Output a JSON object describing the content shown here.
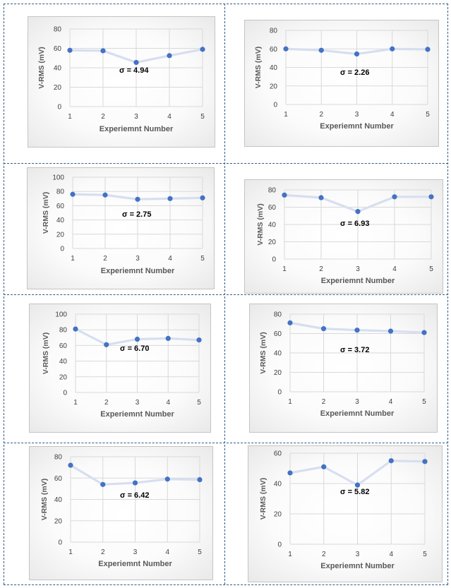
{
  "chart_data": [
    {
      "type": "line",
      "xlabel": "Experiemnt Number",
      "ylabel": "V-RMS (mV)",
      "ylim": [
        0,
        80
      ],
      "yticks": [
        0,
        20,
        40,
        60,
        80
      ],
      "x": [
        1,
        2,
        3,
        4,
        5
      ],
      "series": [
        {
          "values": [
            58,
            57.5,
            45.5,
            52.5,
            59
          ]
        }
      ],
      "annotation": "σ = 4.94",
      "grid": true,
      "color": "#4472c4",
      "line_color": "#d6dff0"
    },
    {
      "type": "line",
      "xlabel": "Experiemnt Number",
      "ylabel": "V-RMS (mV)",
      "ylim": [
        0,
        80
      ],
      "yticks": [
        0,
        20,
        40,
        60,
        80
      ],
      "x": [
        1,
        2,
        3,
        4,
        5
      ],
      "series": [
        {
          "values": [
            60,
            58.5,
            54.5,
            60,
            59.5
          ]
        }
      ],
      "annotation": "σ = 2.26",
      "grid": true,
      "color": "#4472c4",
      "line_color": "#d6dff0"
    },
    {
      "type": "line",
      "xlabel": "Experiemnt Number",
      "ylabel": "V-RMS (mV)",
      "ylim": [
        0,
        100
      ],
      "yticks": [
        0,
        20,
        40,
        60,
        80,
        100
      ],
      "x": [
        1,
        2,
        3,
        4,
        5
      ],
      "series": [
        {
          "values": [
            76,
            75,
            69,
            70,
            71
          ]
        }
      ],
      "annotation": "σ = 2.75",
      "grid": true,
      "color": "#4472c4",
      "line_color": "#d6dff0"
    },
    {
      "type": "line",
      "xlabel": "Experiemnt Number",
      "ylabel": "V-RMS (mV)",
      "ylim": [
        0,
        80
      ],
      "yticks": [
        0,
        20,
        40,
        60,
        80
      ],
      "x": [
        1,
        2,
        3,
        4,
        5
      ],
      "series": [
        {
          "values": [
            74,
            71,
            55,
            72,
            72
          ]
        }
      ],
      "annotation": "σ = 6.93",
      "grid": true,
      "color": "#4472c4",
      "line_color": "#d6dff0"
    },
    {
      "type": "line",
      "xlabel": "Experiemnt Number",
      "ylabel": "V-RMS (mV)",
      "ylim": [
        0,
        100
      ],
      "yticks": [
        0,
        20,
        40,
        60,
        80,
        100
      ],
      "x": [
        1,
        2,
        3,
        4,
        5
      ],
      "series": [
        {
          "values": [
            81,
            61,
            68,
            69,
            67
          ]
        }
      ],
      "annotation": "σ = 6.70",
      "grid": true,
      "color": "#4472c4",
      "line_color": "#d6dff0"
    },
    {
      "type": "line",
      "xlabel": "Experiemnt Number",
      "ylabel": "V-RMS (mV)",
      "ylim": [
        0,
        80
      ],
      "yticks": [
        0,
        20,
        40,
        60,
        80
      ],
      "x": [
        1,
        2,
        3,
        4,
        5
      ],
      "series": [
        {
          "values": [
            71,
            65,
            63.5,
            62.5,
            61
          ]
        }
      ],
      "annotation": "σ = 3.72",
      "grid": true,
      "color": "#4472c4",
      "line_color": "#d6dff0"
    },
    {
      "type": "line",
      "xlabel": "Experiemnt Number",
      "ylabel": "V-RMS (mV)",
      "ylim": [
        0,
        80
      ],
      "yticks": [
        0,
        20,
        40,
        60,
        80
      ],
      "x": [
        1,
        2,
        3,
        4,
        5
      ],
      "series": [
        {
          "values": [
            72,
            54,
            55.5,
            59,
            58.5
          ]
        }
      ],
      "annotation": "σ = 6.42",
      "grid": true,
      "color": "#4472c4",
      "line_color": "#d6dff0"
    },
    {
      "type": "line",
      "xlabel": "Experiemnt Number",
      "ylabel": "V-RMS (mV)",
      "ylim": [
        0,
        60
      ],
      "yticks": [
        0,
        20,
        40,
        60
      ],
      "x": [
        1,
        2,
        3,
        4,
        5
      ],
      "series": [
        {
          "values": [
            47,
            51,
            39,
            55,
            54.5
          ]
        }
      ],
      "annotation": "σ = 5.82",
      "grid": true,
      "color": "#4472c4",
      "line_color": "#d6dff0"
    }
  ]
}
